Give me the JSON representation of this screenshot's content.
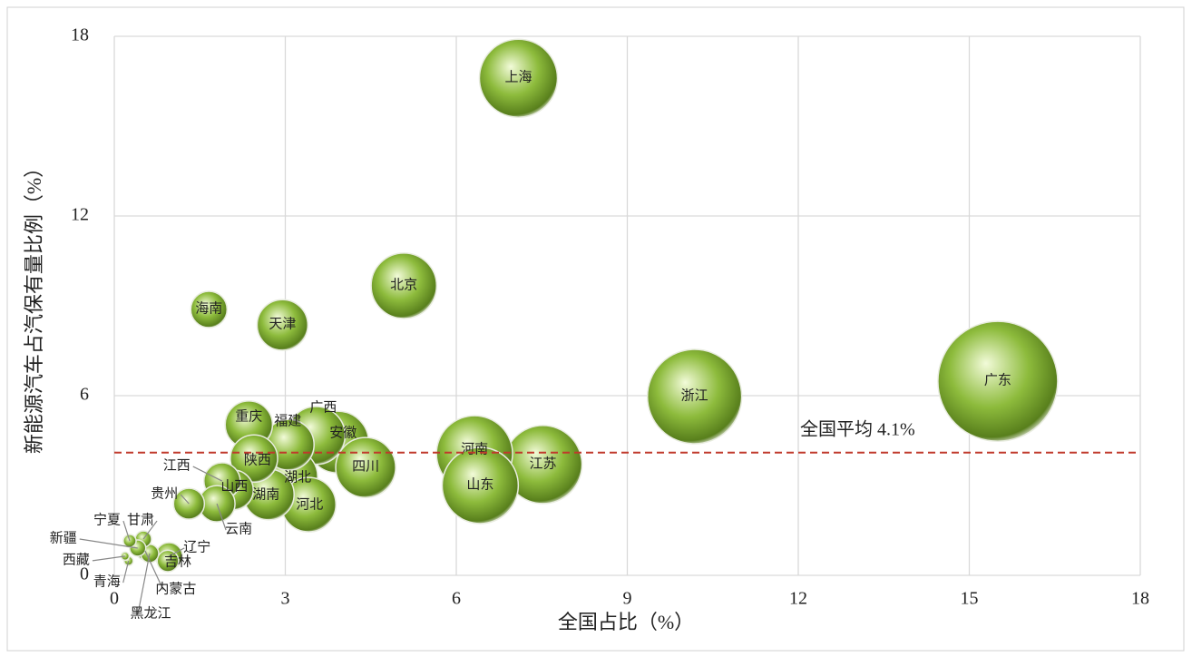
{
  "chart_data": {
    "type": "bubble",
    "xlabel": "全国占比（%）",
    "ylabel": "新能源汽车占汽保有量比例（%）",
    "xlim": [
      0,
      18
    ],
    "xticks": [
      0,
      3,
      6,
      9,
      12,
      15,
      18
    ],
    "ylim": [
      0,
      18
    ],
    "yticks": [
      0,
      6,
      12,
      18
    ],
    "grid": true,
    "color": "#8dbb3c",
    "reference_line": {
      "value": 4.1,
      "label": "全国平均 4.1%",
      "color": "#c0392b"
    },
    "labels": [
      "上海",
      "北京",
      "海南",
      "天津",
      "广东",
      "浙江",
      "河南",
      "山东",
      "江苏",
      "重庆",
      "广西",
      "安徽",
      "福建",
      "四川",
      "陕西",
      "湖北",
      "湖南",
      "河北",
      "山西",
      "江西",
      "云南",
      "贵州",
      "辽宁",
      "吉林",
      "甘肃",
      "宁夏",
      "新疆",
      "西藏",
      "青海",
      "内蒙古",
      "黑龙江"
    ],
    "x": [
      7.09,
      5.08,
      1.66,
      2.95,
      15.5,
      10.18,
      6.32,
      6.42,
      7.52,
      2.36,
      3.54,
      3.92,
      3.06,
      4.41,
      2.45,
      3.09,
      2.71,
      3.41,
      2.09,
      1.89,
      1.8,
      1.31,
      0.96,
      0.94,
      0.51,
      0.27,
      0.41,
      0.19,
      0.25,
      0.54,
      0.62
    ],
    "y": [
      16.6,
      9.67,
      8.88,
      8.36,
      6.48,
      5.97,
      4.06,
      3.0,
      3.7,
      5.03,
      4.67,
      4.45,
      4.36,
      3.6,
      3.9,
      3.3,
      2.7,
      2.36,
      2.85,
      3.15,
      2.39,
      2.39,
      0.64,
      0.48,
      1.21,
      1.15,
      0.91,
      0.64,
      0.48,
      0.82,
      0.73
    ],
    "sizes": [
      185,
      130,
      40,
      78,
      436,
      270,
      176,
      176,
      185,
      68,
      102,
      116,
      78,
      109,
      68,
      90,
      78,
      90,
      48,
      40,
      40,
      29,
      22,
      14,
      8,
      5,
      8,
      2,
      2.5,
      10,
      10
    ]
  }
}
